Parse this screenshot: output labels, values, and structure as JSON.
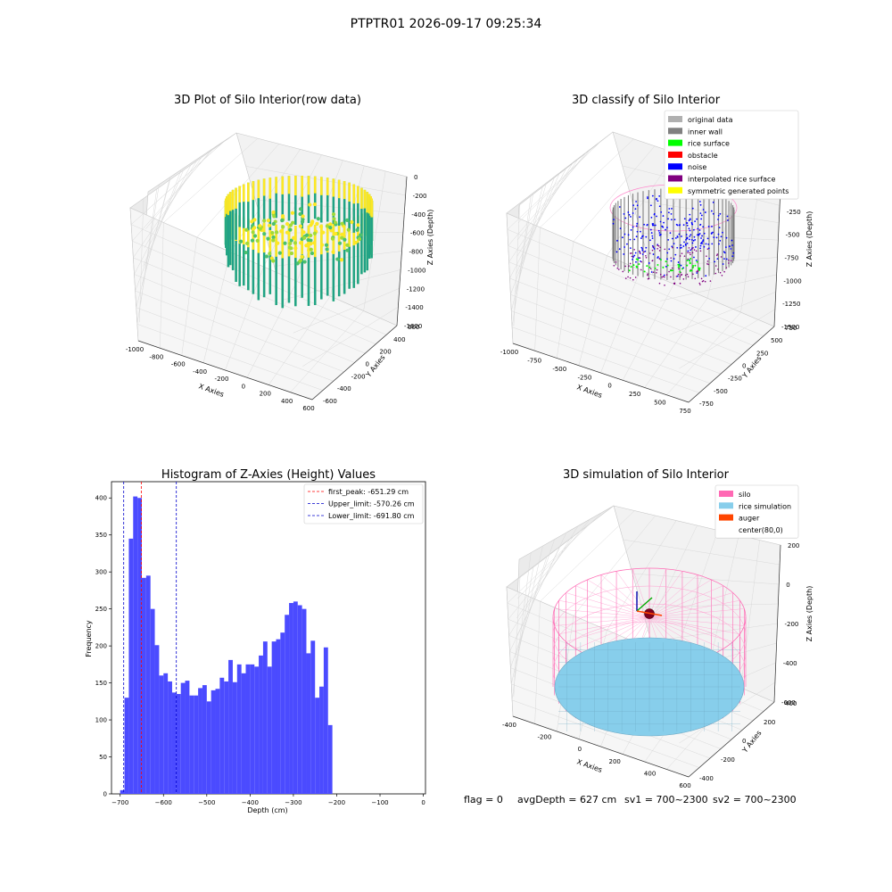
{
  "figure": {
    "suptitle": "PTPTR01 2026-09-17 09:25:34",
    "footer": {
      "flag": "flag = 0",
      "avg_depth": "avgDepth = 627 cm",
      "sv1": "sv1 = 700~2300",
      "sv2": "sv2 = 700~2300"
    }
  },
  "chart_data": [
    {
      "type": "scatter",
      "title": "3D Plot of Silo Interior(row data)",
      "xlabel": "X Axies",
      "ylabel": "Y Axies",
      "zlabel": "Z Axies (Depth)",
      "x_ticks": [
        "-1000",
        "-800",
        "-600",
        "-400",
        "-200",
        "0",
        "200",
        "400",
        "600"
      ],
      "y_ticks": [
        "-600",
        "-400",
        "-200",
        "0",
        "200",
        "400",
        "600"
      ],
      "z_ticks": [
        "0",
        "-200",
        "-400",
        "-600",
        "-800",
        "-1000",
        "-1200",
        "-1400",
        "-1600"
      ],
      "grid": true,
      "colormap": [
        "#fde725",
        "#a0da39",
        "#4ac16d",
        "#1fa187"
      ]
    },
    {
      "type": "scatter",
      "title": "3D classify of Silo Interior",
      "xlabel": "X Axies",
      "ylabel": "Y Axies",
      "zlabel": "Z Axies (Depth)",
      "x_ticks": [
        "-1000",
        "-750",
        "-500",
        "-250",
        "0",
        "250",
        "500",
        "750"
      ],
      "y_ticks": [
        "-750",
        "-500",
        "-250",
        "0",
        "250",
        "500",
        "750"
      ],
      "z_ticks": [
        "0",
        "-250",
        "-500",
        "-750",
        "-1000",
        "-1250",
        "-1500"
      ],
      "grid": true,
      "legend_position": "top-right",
      "legend": [
        {
          "label": "original data",
          "color": "#b0b0b0"
        },
        {
          "label": "inner wall",
          "color": "#808080"
        },
        {
          "label": "rice surface",
          "color": "#00ff00"
        },
        {
          "label": "obstacle",
          "color": "#ff0000"
        },
        {
          "label": "noise",
          "color": "#0000ff"
        },
        {
          "label": "interpolated rice surface",
          "color": "#800080"
        },
        {
          "label": "symmetric generated points",
          "color": "#ffff00"
        }
      ]
    },
    {
      "type": "bar",
      "title": "Histogram of Z-Axies (Height) Values",
      "xlabel": "Depth (cm)",
      "ylabel": "Frequency",
      "bin_start": -700,
      "bin_width": 10,
      "values": [
        5,
        130,
        345,
        402,
        400,
        292,
        295,
        250,
        201,
        160,
        163,
        152,
        137,
        135,
        150,
        153,
        133,
        133,
        143,
        147,
        125,
        140,
        142,
        157,
        152,
        181,
        151,
        175,
        163,
        175,
        175,
        172,
        187,
        206,
        172,
        206,
        209,
        218,
        242,
        258,
        260,
        255,
        250,
        190,
        207,
        130,
        145,
        198,
        93
      ],
      "xlim": [
        -720,
        5
      ],
      "ylim": [
        0,
        422
      ],
      "x_ticks": [
        -700,
        -600,
        -500,
        -400,
        -300,
        -200,
        -100,
        0
      ],
      "y_ticks": [
        0,
        50,
        100,
        150,
        200,
        250,
        300,
        350,
        400
      ],
      "bar_color": "#4b4bff",
      "lines": [
        {
          "label": "first_peak: -651.29 cm",
          "x": -651.29,
          "color": "#ff0000"
        },
        {
          "label": "Upper_limit: -570.26 cm",
          "x": -570.26,
          "color": "#0000cc"
        },
        {
          "label": "Lower_limit: -691.80 cm",
          "x": -691.8,
          "color": "#0000cc"
        }
      ],
      "legend_position": "top-right"
    },
    {
      "type": "scatter",
      "title": "3D simulation of Silo Interior",
      "xlabel": "X Axies",
      "ylabel": "Y Axies",
      "zlabel": "Z Axies (Depth)",
      "x_ticks": [
        "-400",
        "-200",
        "0",
        "200",
        "400",
        "600"
      ],
      "y_ticks": [
        "-400",
        "-200",
        "0",
        "200",
        "400"
      ],
      "z_ticks": [
        "200",
        "0",
        "-200",
        "-400",
        "-600"
      ],
      "grid": true,
      "legend_position": "top-right",
      "legend": [
        {
          "label": "silo",
          "color": "#ff69b4"
        },
        {
          "label": "rice simulation",
          "color": "#87ceeb"
        },
        {
          "label": "auger",
          "color": "#ff4500"
        },
        {
          "label": "center(80,0)",
          "color": "#ffffff"
        }
      ]
    }
  ]
}
